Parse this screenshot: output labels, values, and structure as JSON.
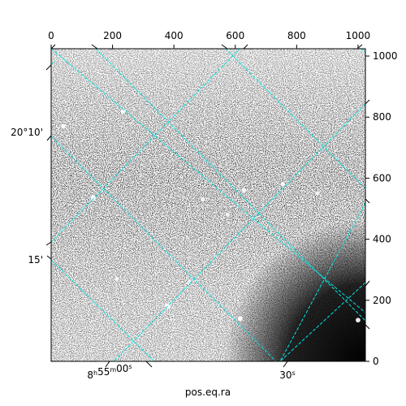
{
  "chart_data": {
    "type": "image",
    "title": "",
    "xlabel": "pos.eq.ra",
    "ylabel": "",
    "pixel_axes": {
      "x": {
        "ticks": [
          0,
          200,
          400,
          600,
          800,
          1000
        ],
        "range": [
          0,
          1024
        ]
      },
      "y": {
        "ticks": [
          0,
          200,
          400,
          600,
          800,
          1000
        ],
        "range": [
          0,
          1024
        ]
      }
    },
    "world_axes": {
      "ra_ticks": [
        "8h55m00s",
        "30s"
      ],
      "dec_ticks": [
        "20°10'",
        "15'"
      ]
    },
    "grid": {
      "visible": true,
      "style": "dashed",
      "color": "#00e5e5"
    },
    "image": {
      "colormap": "gray",
      "sources": [
        {
          "x": 137,
          "y": 536,
          "brightness": 1.0
        },
        {
          "x": 234,
          "y": 820,
          "brightness": 0.8
        },
        {
          "x": 380,
          "y": 180,
          "brightness": 0.9
        },
        {
          "x": 616,
          "y": 140,
          "brightness": 0.9
        },
        {
          "x": 628,
          "y": 560,
          "brightness": 0.7
        },
        {
          "x": 755,
          "y": 580,
          "brightness": 0.7
        },
        {
          "x": 868,
          "y": 550,
          "brightness": 0.6
        },
        {
          "x": 495,
          "y": 530,
          "brightness": 0.6
        },
        {
          "x": 40,
          "y": 770,
          "brightness": 0.7
        },
        {
          "x": 575,
          "y": 480,
          "brightness": 0.5
        },
        {
          "x": 1000,
          "y": 135,
          "brightness": 0.8
        },
        {
          "x": 215,
          "y": 270,
          "brightness": 0.5
        },
        {
          "x": 450,
          "y": 260,
          "brightness": 0.5
        }
      ]
    }
  }
}
